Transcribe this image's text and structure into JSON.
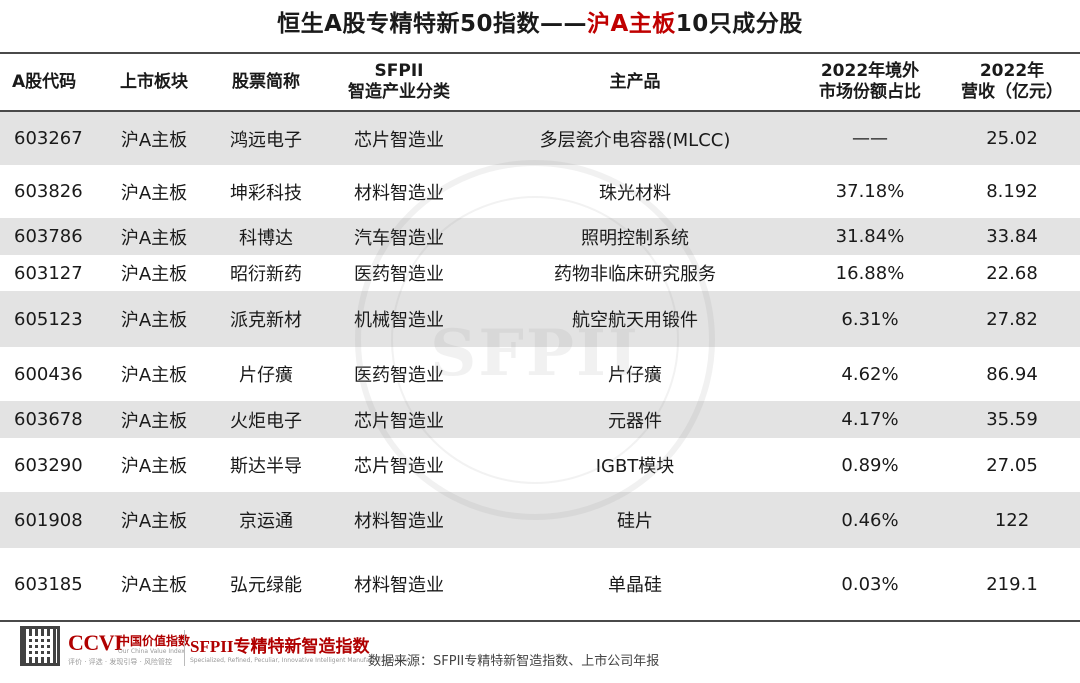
{
  "title": {
    "part1": "恒生A股专精特新50指数——",
    "highlight": "沪A主板",
    "part2": "10只成分股"
  },
  "headers": {
    "code": "A股代码",
    "board": "上市板块",
    "name": "股票简称",
    "sfpii_line1": "SFPII",
    "sfpii_line2": "智造产业分类",
    "product": "主产品",
    "share_line1": "2022年境外",
    "share_line2": "市场份额占比",
    "revenue_line1": "2022年",
    "revenue_line2": "营收（亿元）"
  },
  "rows": [
    {
      "code": "603267",
      "board": "沪A主板",
      "name": "鸿远电子",
      "industry": "芯片智造业",
      "product": "多层瓷介电容器(MLCC)",
      "share": "——",
      "revenue": "25.02"
    },
    {
      "code": "603826",
      "board": "沪A主板",
      "name": "坤彩科技",
      "industry": "材料智造业",
      "product": "珠光材料",
      "share": "37.18%",
      "revenue": "8.192"
    },
    {
      "code": "603786",
      "board": "沪A主板",
      "name": "科博达",
      "industry": "汽车智造业",
      "product": "照明控制系统",
      "share": "31.84%",
      "revenue": "33.84"
    },
    {
      "code": "603127",
      "board": "沪A主板",
      "name": "昭衍新药",
      "industry": "医药智造业",
      "product": "药物非临床研究服务",
      "share": "16.88%",
      "revenue": "22.68"
    },
    {
      "code": "605123",
      "board": "沪A主板",
      "name": "派克新材",
      "industry": "机械智造业",
      "product": "航空航天用锻件",
      "share": "6.31%",
      "revenue": "27.82"
    },
    {
      "code": "600436",
      "board": "沪A主板",
      "name": "片仔癀",
      "industry": "医药智造业",
      "product": "片仔癀",
      "share": "4.62%",
      "revenue": "86.94"
    },
    {
      "code": "603678",
      "board": "沪A主板",
      "name": "火炬电子",
      "industry": "芯片智造业",
      "product": "元器件",
      "share": "4.17%",
      "revenue": "35.59"
    },
    {
      "code": "603290",
      "board": "沪A主板",
      "name": "斯达半导",
      "industry": "芯片智造业",
      "product": "IGBT模块",
      "share": "0.89%",
      "revenue": "27.05"
    },
    {
      "code": "601908",
      "board": "沪A主板",
      "name": "京运通",
      "industry": "材料智造业",
      "product": "硅片",
      "share": "0.46%",
      "revenue": "122"
    },
    {
      "code": "603185",
      "board": "沪A主板",
      "name": "弘元绿能",
      "industry": "材料智造业",
      "product": "单晶硅",
      "share": "0.03%",
      "revenue": "219.1"
    }
  ],
  "watermark": "SFPII",
  "footer": {
    "ccvi_logo": "CCVI",
    "ccvi_cn": "中国价值指数",
    "ccvi_en": "Our China Value Index",
    "ccvi_sub": "评价 · 评选 · 发现引导 · 风险管控",
    "sfpii_logo": "SFPII专精特新智造指数",
    "sfpii_en": "Specialized, Refined, Peculiar, Innovative Intelligent Manufacturing Index",
    "source": "数据来源：SFPII专精特新智造指数、上市公司年报"
  },
  "colors": {
    "highlight": "#c00000",
    "stripe": "#e3e3e3",
    "rule": "#4a4a4a"
  }
}
